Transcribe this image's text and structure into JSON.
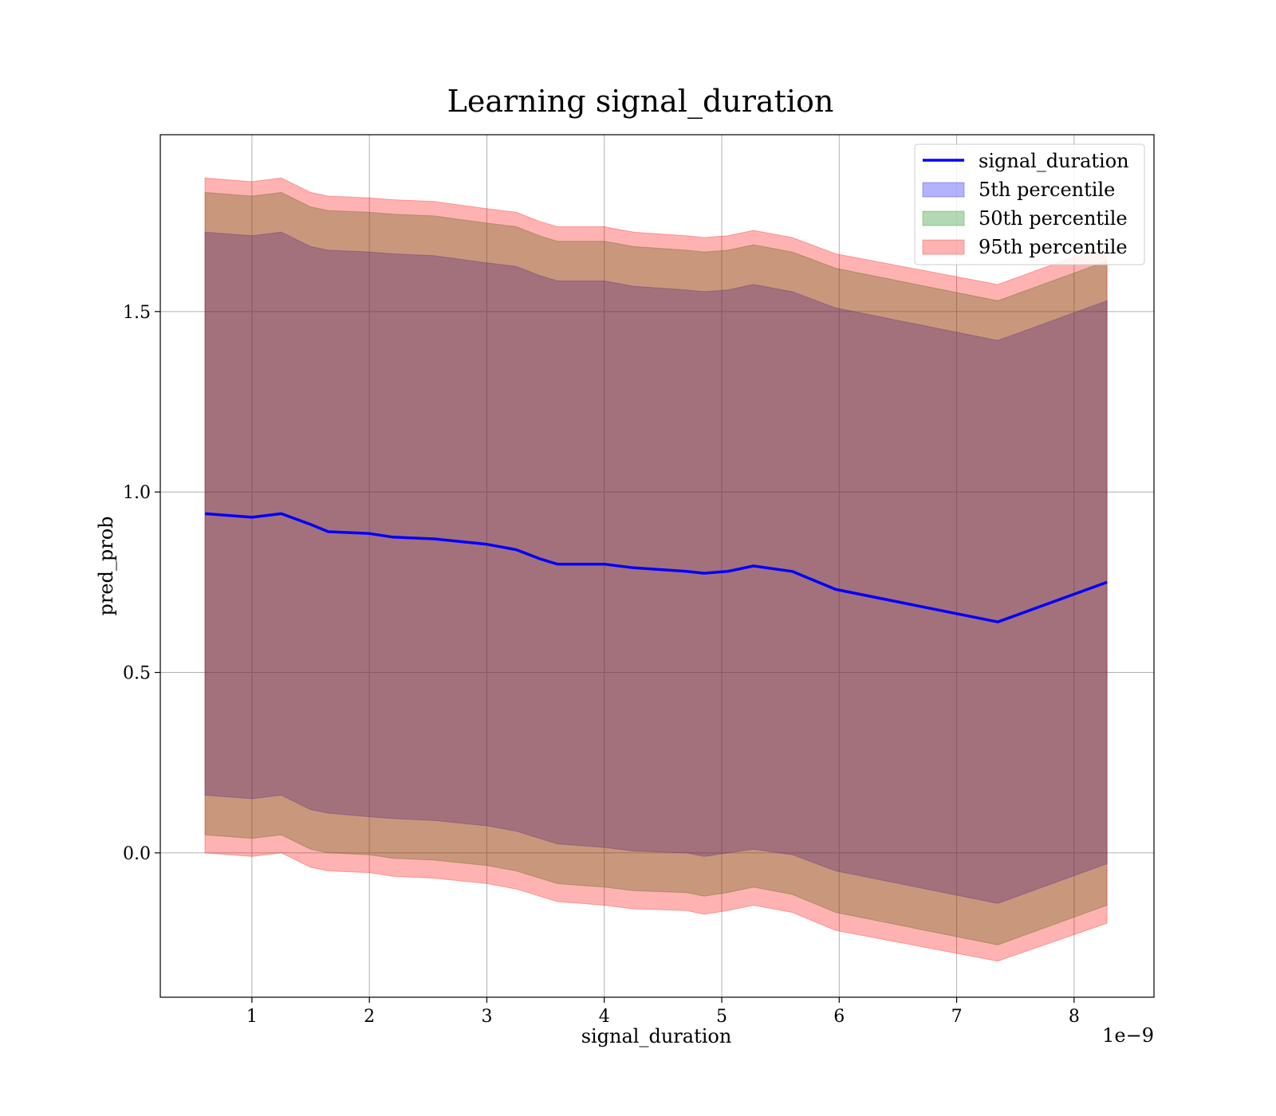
{
  "chart_data": {
    "type": "line",
    "title": "Learning signal_duration",
    "xlabel": "signal_duration",
    "ylabel": "pred_prob",
    "x_offset_label": "1e−9",
    "xlim": [
      0.22,
      8.68
    ],
    "ylim": [
      -0.4,
      1.99
    ],
    "xticks": [
      1,
      2,
      3,
      4,
      5,
      6,
      7,
      8
    ],
    "xtick_labels": [
      "1",
      "2",
      "3",
      "4",
      "5",
      "6",
      "7",
      "8"
    ],
    "yticks": [
      0.0,
      0.5,
      1.0,
      1.5
    ],
    "ytick_labels": [
      "0.0",
      "0.5",
      "1.0",
      "1.5"
    ],
    "grid": true,
    "legend_position": "top-right",
    "line_color": "#0000ff",
    "band_colors": {
      "p5": "#0000ff",
      "p50": "#008000",
      "p95": "#ff0000"
    },
    "x": [
      0.6,
      1.0,
      1.25,
      1.5,
      1.65,
      2.0,
      2.2,
      2.55,
      3.0,
      3.25,
      3.45,
      3.6,
      3.8,
      4.0,
      4.25,
      4.7,
      4.85,
      5.05,
      5.27,
      5.6,
      5.97,
      7.35,
      8.28
    ],
    "series": [
      {
        "name": "signal_duration",
        "values": [
          0.94,
          0.93,
          0.94,
          0.91,
          0.89,
          0.885,
          0.875,
          0.87,
          0.855,
          0.84,
          0.815,
          0.8,
          0.8,
          0.8,
          0.79,
          0.78,
          0.775,
          0.78,
          0.795,
          0.78,
          0.73,
          0.64,
          0.75
        ]
      }
    ],
    "bands": [
      {
        "name": "5th percentile",
        "lower": [
          0.16,
          0.15,
          0.16,
          0.12,
          0.11,
          0.1,
          0.095,
          0.09,
          0.075,
          0.06,
          0.04,
          0.025,
          0.02,
          0.015,
          0.005,
          0.0,
          -0.01,
          0.0,
          0.01,
          -0.005,
          -0.05,
          -0.14,
          -0.03
        ],
        "upper": [
          1.72,
          1.71,
          1.72,
          1.68,
          1.67,
          1.665,
          1.66,
          1.655,
          1.635,
          1.625,
          1.6,
          1.585,
          1.585,
          1.585,
          1.57,
          1.56,
          1.555,
          1.56,
          1.575,
          1.555,
          1.51,
          1.42,
          1.53
        ]
      },
      {
        "name": "50th percentile",
        "lower": [
          0.05,
          0.04,
          0.05,
          0.01,
          0.0,
          -0.005,
          -0.015,
          -0.02,
          -0.035,
          -0.05,
          -0.07,
          -0.085,
          -0.09,
          -0.095,
          -0.105,
          -0.11,
          -0.12,
          -0.11,
          -0.095,
          -0.115,
          -0.165,
          -0.255,
          -0.145
        ],
        "upper": [
          1.83,
          1.82,
          1.83,
          1.79,
          1.78,
          1.775,
          1.77,
          1.765,
          1.745,
          1.735,
          1.71,
          1.695,
          1.695,
          1.695,
          1.68,
          1.67,
          1.665,
          1.67,
          1.685,
          1.665,
          1.62,
          1.53,
          1.64
        ]
      },
      {
        "name": "95th percentile",
        "lower": [
          0.0,
          -0.01,
          0.0,
          -0.04,
          -0.05,
          -0.055,
          -0.065,
          -0.07,
          -0.085,
          -0.1,
          -0.12,
          -0.135,
          -0.14,
          -0.145,
          -0.155,
          -0.16,
          -0.17,
          -0.16,
          -0.145,
          -0.165,
          -0.215,
          -0.3,
          -0.195
        ],
        "upper": [
          1.87,
          1.86,
          1.87,
          1.83,
          1.82,
          1.815,
          1.81,
          1.805,
          1.785,
          1.775,
          1.75,
          1.735,
          1.735,
          1.735,
          1.72,
          1.71,
          1.705,
          1.71,
          1.725,
          1.705,
          1.66,
          1.575,
          1.685
        ]
      }
    ]
  }
}
